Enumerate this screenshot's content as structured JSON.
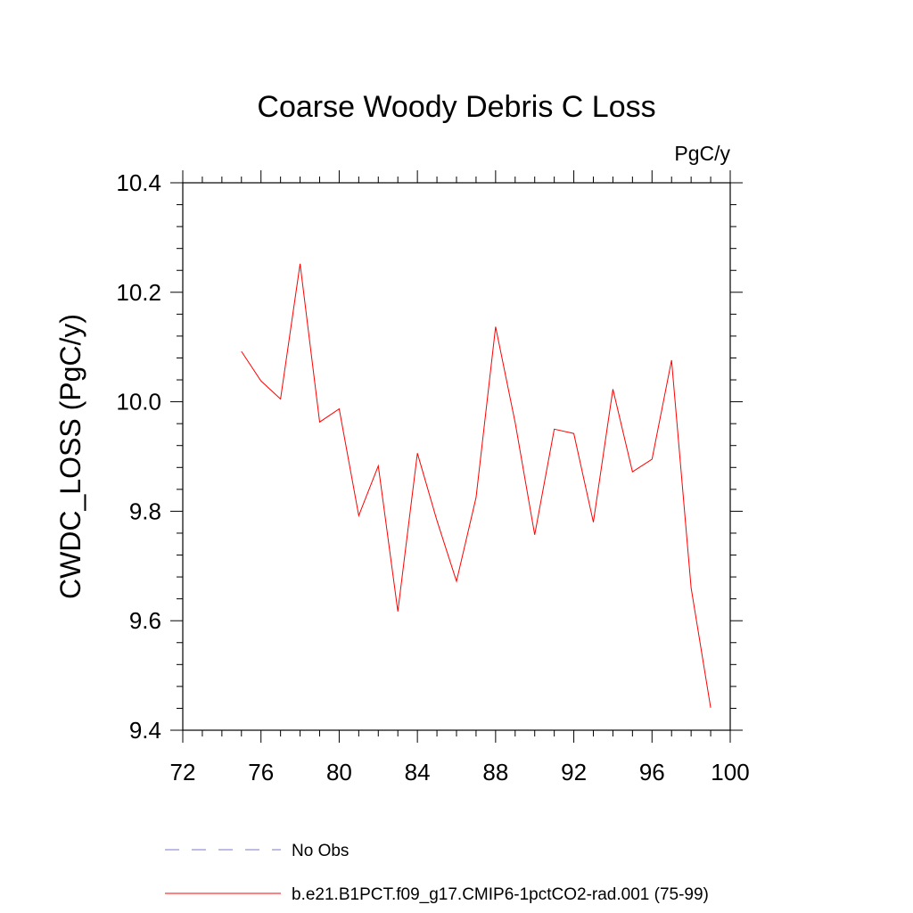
{
  "chart_data": {
    "type": "line",
    "title": "Coarse Woody Debris C Loss",
    "units_label": "PgC/y",
    "ylabel": "CWDC_LOSS  (PgC/y)",
    "xlabel": "",
    "xlim": [
      72,
      100
    ],
    "ylim": [
      9.4,
      10.4
    ],
    "xticks": [
      72,
      76,
      80,
      84,
      88,
      92,
      96,
      100
    ],
    "xtick_labels": [
      "72",
      "76",
      "80",
      "84",
      "88",
      "92",
      "96",
      "100"
    ],
    "yticks": [
      9.4,
      9.6,
      9.8,
      10.0,
      10.2,
      10.4
    ],
    "ytick_labels": [
      "9.4",
      "9.6",
      "9.8",
      "10.0",
      "10.2",
      "10.4"
    ],
    "grid": false,
    "legend_placement": "bottom",
    "series": [
      {
        "name": "b.e21.B1PCT.f09_g17.CMIP6-1pctCO2-rad.001 (75-99)",
        "color": "#ff0000",
        "dash": "solid",
        "x": [
          75,
          76,
          77,
          78,
          79,
          80,
          81,
          82,
          83,
          84,
          85,
          86,
          87,
          88,
          89,
          90,
          91,
          92,
          93,
          94,
          95,
          96,
          97,
          98,
          99
        ],
        "y": [
          10.092,
          10.038,
          10.005,
          10.252,
          9.963,
          9.987,
          9.792,
          9.883,
          9.617,
          9.906,
          9.783,
          9.672,
          9.825,
          10.137,
          9.962,
          9.757,
          9.95,
          9.942,
          9.78,
          10.023,
          9.872,
          9.895,
          10.076,
          9.66,
          9.441
        ]
      }
    ],
    "legend": [
      {
        "label": "No Obs",
        "color": "#7b7bc8",
        "dash": "dashed"
      },
      {
        "label": "b.e21.B1PCT.f09_g17.CMIP6-1pctCO2-rad.001 (75-99)",
        "color": "#ff0000",
        "dash": "solid"
      }
    ]
  }
}
